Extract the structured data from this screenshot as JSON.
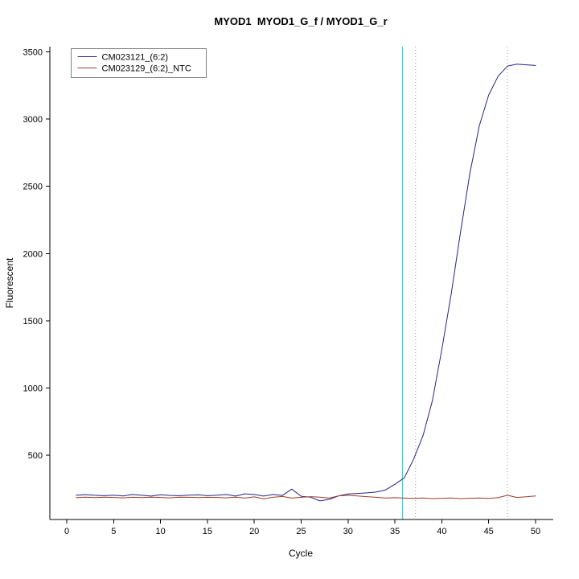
{
  "window": {
    "background": "#ffffff"
  },
  "chart_data": {
    "type": "line",
    "title": "MYOD1  MYOD1_G_f / MYOD1_G_r",
    "xlabel": "Cycle",
    "ylabel": "Fluorescent",
    "xlim": [
      -1,
      52
    ],
    "ylim": [
      20,
      3540
    ],
    "x_ticks": [
      0,
      5,
      10,
      15,
      20,
      25,
      30,
      35,
      40,
      45,
      50
    ],
    "y_ticks": [
      500,
      1000,
      1500,
      2000,
      2500,
      3000,
      3500
    ],
    "grid": "off",
    "legend_position": "top-left",
    "x": [
      1,
      2,
      3,
      4,
      5,
      6,
      7,
      8,
      9,
      10,
      11,
      12,
      13,
      14,
      15,
      16,
      17,
      18,
      19,
      20,
      21,
      22,
      23,
      24,
      25,
      26,
      27,
      28,
      29,
      30,
      31,
      32,
      33,
      34,
      35,
      36,
      37,
      38,
      39,
      40,
      41,
      42,
      43,
      44,
      45,
      46,
      47,
      48,
      49,
      50
    ],
    "series": [
      {
        "name": "CM023121_(6:2)",
        "color": "#24248c",
        "values": [
          200,
          205,
          200,
          197,
          201,
          195,
          206,
          200,
          194,
          204,
          199,
          197,
          201,
          203,
          197,
          200,
          206,
          194,
          211,
          206,
          194,
          206,
          199,
          246,
          193,
          186,
          158,
          170,
          196,
          210,
          214,
          218,
          224,
          240,
          282,
          330,
          470,
          645,
          905,
          1285,
          1700,
          2160,
          2600,
          2950,
          3180,
          3320,
          3395,
          3410,
          3405,
          3400
        ]
      },
      {
        "name": "CM023129_(6:2)_NTC",
        "color": "#9e3a2a",
        "values": [
          182,
          186,
          183,
          186,
          184,
          181,
          185,
          183,
          186,
          184,
          181,
          186,
          185,
          183,
          185,
          184,
          181,
          186,
          179,
          188,
          174,
          185,
          191,
          179,
          185,
          190,
          186,
          179,
          196,
          200,
          195,
          190,
          185,
          179,
          182,
          179,
          177,
          180,
          175,
          178,
          180,
          175,
          178,
          180,
          177,
          182,
          200,
          184,
          189,
          195
        ]
      }
    ],
    "vlines": [
      {
        "x": 35.8,
        "color": "#00e5e6",
        "style": "solid",
        "name": "threshold-vline"
      },
      {
        "x": 37.2,
        "color": "#9a9a9a",
        "style": "dotted",
        "name": "ct-marker-vline-1"
      },
      {
        "x": 47.0,
        "color": "#9a9a9a",
        "style": "dotted",
        "name": "ct-marker-vline-2"
      }
    ],
    "legend": {
      "entries": [
        "CM023121_(6:2)",
        "CM023129_(6:2)_NTC"
      ]
    }
  }
}
